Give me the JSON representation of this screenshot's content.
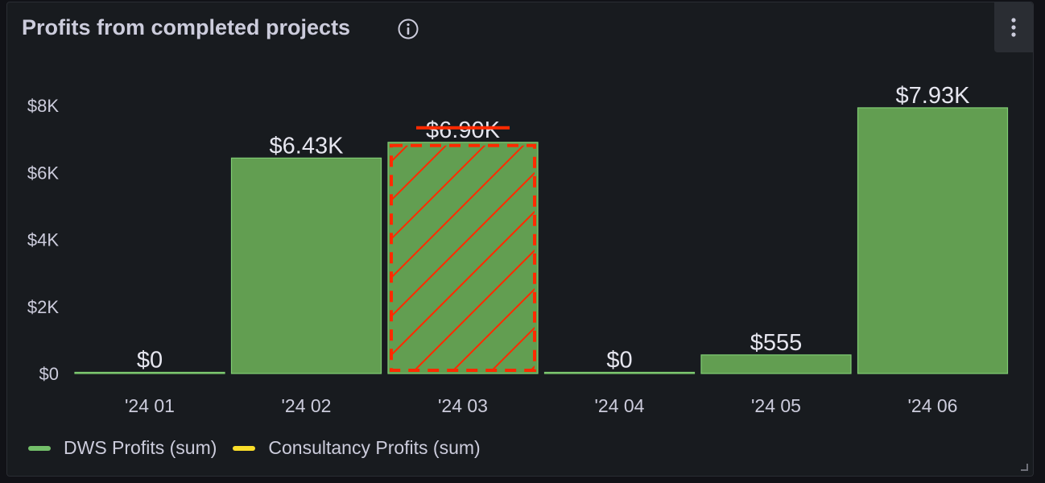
{
  "panel": {
    "title": "Profits from completed projects",
    "info_icon": "info-circle-icon",
    "menu_icon": "vertical-ellipsis-icon"
  },
  "chart_data": {
    "type": "bar",
    "categories": [
      "'24 01",
      "'24 02",
      "'24 03",
      "'24 04",
      "'24 05",
      "'24 06"
    ],
    "series": [
      {
        "name": "DWS Profits (sum)",
        "color": "#629e51",
        "values": [
          0,
          6430,
          6900,
          0,
          555,
          7930
        ],
        "value_labels": [
          "$0",
          "$6.43K",
          "$6.90K",
          "$0",
          "$555",
          "$7.93K"
        ]
      },
      {
        "name": "Consultancy Profits (sum)",
        "color": "#fade2a",
        "values": [
          0,
          0,
          0,
          0,
          0,
          0
        ]
      }
    ],
    "y_ticks": [
      "$0",
      "$2K",
      "$4K",
      "$6K",
      "$8K"
    ],
    "y_tick_values": [
      0,
      2000,
      4000,
      6000,
      8000
    ],
    "ylim": [
      0,
      8000
    ],
    "grid": false,
    "legend_position": "bottom-left",
    "annotation": {
      "category": "'24 03",
      "style": "red dashed hatched box with strikethrough label",
      "color": "#ff2a00"
    }
  },
  "legend": {
    "items": [
      {
        "label": "DWS Profits (sum)",
        "color": "#73bf69"
      },
      {
        "label": "Consultancy Profits (sum)",
        "color": "#fade2a"
      }
    ]
  }
}
